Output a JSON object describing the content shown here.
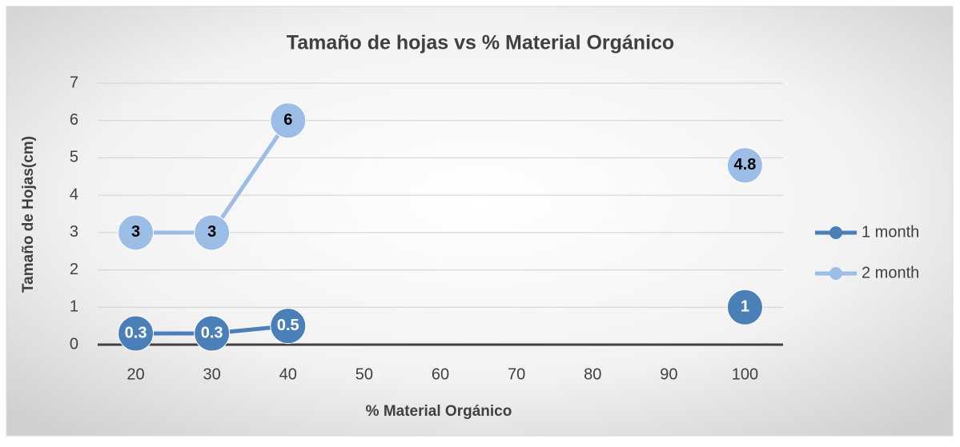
{
  "chart_data": {
    "type": "line",
    "title": "Tamaño de hojas vs % Material Orgánico",
    "x_label": "% Material Orgánico",
    "y_label": "Tamaño de Hojas(cm)",
    "x": [
      20,
      30,
      40,
      50,
      60,
      70,
      80,
      90,
      100
    ],
    "xlim": [
      15,
      105
    ],
    "xticks": [
      20,
      30,
      40,
      50,
      60,
      70,
      80,
      90,
      100
    ],
    "ylim": [
      0,
      7
    ],
    "yticks": [
      0,
      1,
      2,
      3,
      4,
      5,
      6,
      7
    ],
    "grid": true,
    "legend": "right",
    "series": [
      {
        "name": "1 month",
        "color": "#4a7fb8",
        "values": [
          0.3,
          0.3,
          0.5,
          null,
          null,
          null,
          null,
          null,
          1
        ]
      },
      {
        "name": "2 month",
        "color": "#9cbde6",
        "values": [
          3,
          3,
          6,
          null,
          null,
          null,
          null,
          null,
          4.8
        ]
      }
    ]
  }
}
